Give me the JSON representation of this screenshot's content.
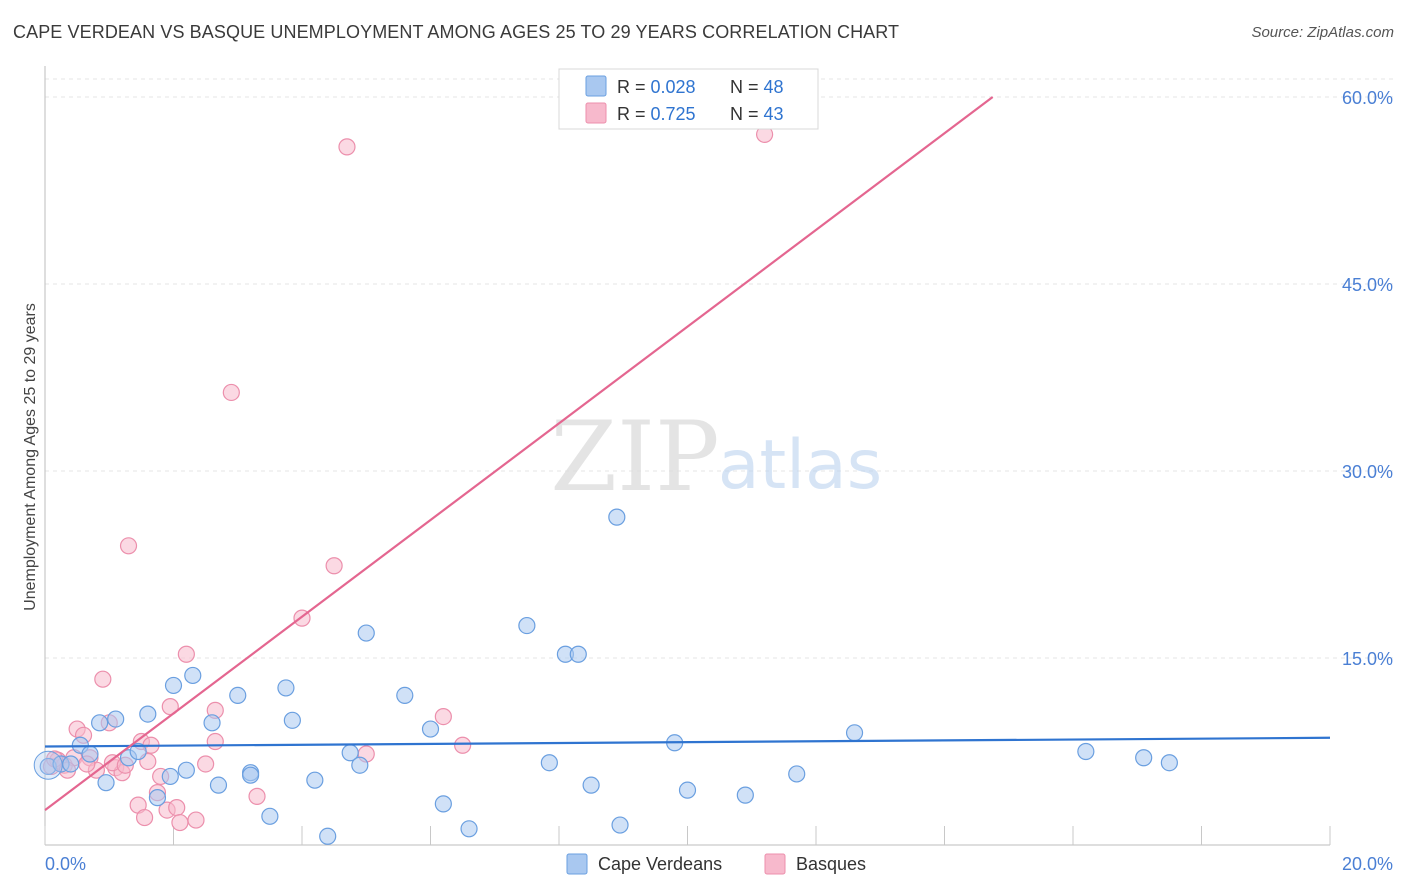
{
  "title": "CAPE VERDEAN VS BASQUE UNEMPLOYMENT AMONG AGES 25 TO 29 YEARS CORRELATION CHART",
  "source": "Source: ZipAtlas.com",
  "watermark": {
    "zip": "ZIP",
    "atlas": "atlas"
  },
  "colors": {
    "blue_fill": "#a9c8f0",
    "blue_stroke": "#6a9fe0",
    "blue_line": "#2f74d0",
    "pink_fill": "#f7b9cc",
    "pink_stroke": "#ec8fac",
    "pink_line": "#e46690",
    "axis_text": "#4a7fd4",
    "grid": "#e6e6e6"
  },
  "legend": {
    "items": [
      {
        "r_label": "R = ",
        "r_value": "0.028",
        "n_label": "N = ",
        "n_value": "48"
      },
      {
        "r_label": "R = ",
        "r_value": "0.725",
        "n_label": "N = ",
        "n_value": "43"
      }
    ]
  },
  "bottom_legend": [
    "Cape Verdeans",
    "Basques"
  ],
  "chart_data": {
    "type": "scatter",
    "title": "CAPE VERDEAN VS BASQUE UNEMPLOYMENT AMONG AGES 25 TO 29 YEARS CORRELATION CHART",
    "xlabel": "",
    "ylabel": "Unemployment Among Ages 25 to 29 years",
    "xlim": [
      0,
      20
    ],
    "ylim": [
      0,
      60
    ],
    "x_tick_labels": [
      "0.0%",
      "20.0%"
    ],
    "y_ticks": [
      15,
      30,
      45,
      60
    ],
    "y_tick_labels": [
      "15.0%",
      "30.0%",
      "45.0%",
      "60.0%"
    ],
    "series": [
      {
        "name": "Cape Verdeans",
        "color": "#a9c8f0",
        "points": [
          [
            0.05,
            6.3
          ],
          [
            0.25,
            6.5
          ],
          [
            0.4,
            6.5
          ],
          [
            0.55,
            8.0
          ],
          [
            0.7,
            7.3
          ],
          [
            0.85,
            9.8
          ],
          [
            0.95,
            5.0
          ],
          [
            1.1,
            10.1
          ],
          [
            1.3,
            7.0
          ],
          [
            1.45,
            7.5
          ],
          [
            1.6,
            10.5
          ],
          [
            1.75,
            3.8
          ],
          [
            1.95,
            5.5
          ],
          [
            2.0,
            12.8
          ],
          [
            2.2,
            6.0
          ],
          [
            2.3,
            13.6
          ],
          [
            2.6,
            9.8
          ],
          [
            2.7,
            4.8
          ],
          [
            3.0,
            12.0
          ],
          [
            3.2,
            5.8
          ],
          [
            3.2,
            5.6
          ],
          [
            3.5,
            2.3
          ],
          [
            3.75,
            12.6
          ],
          [
            3.85,
            10.0
          ],
          [
            4.2,
            5.2
          ],
          [
            4.4,
            0.7
          ],
          [
            4.75,
            7.4
          ],
          [
            4.9,
            6.4
          ],
          [
            5.0,
            17.0
          ],
          [
            5.6,
            12.0
          ],
          [
            6.0,
            9.3
          ],
          [
            6.2,
            3.3
          ],
          [
            6.6,
            1.3
          ],
          [
            7.5,
            17.6
          ],
          [
            7.85,
            6.6
          ],
          [
            8.1,
            15.3
          ],
          [
            8.3,
            15.3
          ],
          [
            8.5,
            4.8
          ],
          [
            8.9,
            26.3
          ],
          [
            8.95,
            1.6
          ],
          [
            9.8,
            8.2
          ],
          [
            10.0,
            4.4
          ],
          [
            10.9,
            4.0
          ],
          [
            11.7,
            5.7
          ],
          [
            12.6,
            9.0
          ],
          [
            16.2,
            7.5
          ],
          [
            17.1,
            7.0
          ],
          [
            17.5,
            6.6
          ]
        ]
      },
      {
        "name": "Basques",
        "color": "#f7b9cc",
        "points": [
          [
            0.1,
            6.3
          ],
          [
            0.2,
            6.8
          ],
          [
            0.3,
            6.4
          ],
          [
            0.5,
            9.3
          ],
          [
            0.6,
            8.8
          ],
          [
            0.7,
            7.0
          ],
          [
            0.8,
            6.0
          ],
          [
            0.9,
            13.3
          ],
          [
            1.0,
            9.8
          ],
          [
            1.1,
            6.2
          ],
          [
            1.2,
            5.8
          ],
          [
            1.3,
            24.0
          ],
          [
            1.45,
            3.2
          ],
          [
            1.5,
            8.3
          ],
          [
            1.55,
            2.2
          ],
          [
            1.65,
            8.0
          ],
          [
            1.75,
            4.2
          ],
          [
            1.8,
            5.5
          ],
          [
            1.9,
            2.8
          ],
          [
            1.95,
            11.1
          ],
          [
            2.05,
            3.0
          ],
          [
            2.1,
            1.8
          ],
          [
            2.2,
            15.3
          ],
          [
            2.35,
            2.0
          ],
          [
            2.5,
            6.5
          ],
          [
            2.65,
            10.8
          ],
          [
            2.65,
            8.3
          ],
          [
            2.9,
            36.3
          ],
          [
            3.3,
            3.9
          ],
          [
            4.0,
            18.2
          ],
          [
            4.5,
            22.4
          ],
          [
            4.7,
            56.0
          ],
          [
            5.0,
            7.3
          ],
          [
            6.2,
            10.3
          ],
          [
            6.5,
            8.0
          ],
          [
            11.2,
            57.0
          ],
          [
            0.45,
            7.0
          ],
          [
            0.65,
            6.5
          ],
          [
            1.05,
            6.6
          ],
          [
            1.25,
            6.4
          ],
          [
            0.35,
            6.0
          ],
          [
            0.15,
            6.9
          ],
          [
            1.6,
            6.7
          ]
        ]
      }
    ],
    "trend_lines": [
      {
        "name": "Cape Verdeans",
        "x": [
          0,
          20
        ],
        "y": [
          7.9,
          8.6
        ]
      },
      {
        "name": "Basques",
        "x": [
          0,
          14.75
        ],
        "y": [
          2.8,
          60.0
        ]
      }
    ],
    "legend_position": "top-center"
  }
}
